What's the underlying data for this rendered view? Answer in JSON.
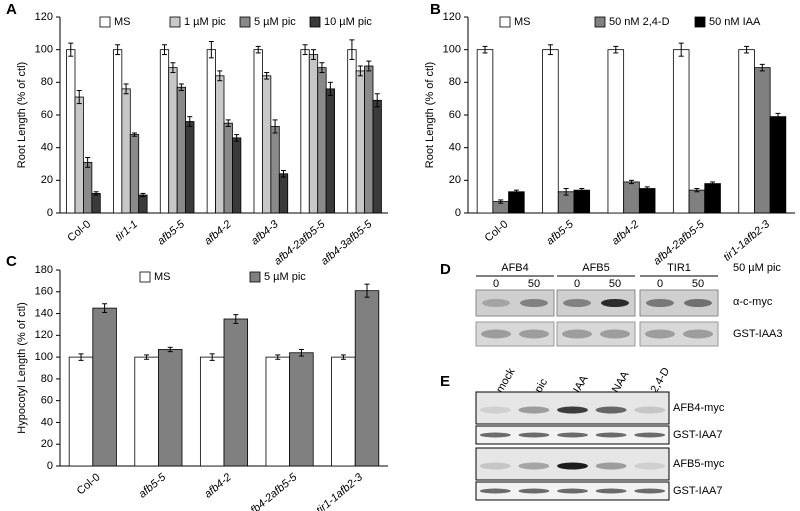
{
  "chart_data": [
    {
      "type": "bar",
      "panel": "A",
      "y_label": "Root Length (% of ctl)",
      "categories": [
        "Col-0",
        "tir1-1",
        "afb5-5",
        "afb4-2",
        "afb4-3",
        "afb4-2afb5-5",
        "afb4-3afb5-5"
      ],
      "series": [
        {
          "name": "MS",
          "color": "#ffffff",
          "values": [
            100,
            100,
            100,
            100,
            100,
            100,
            100
          ],
          "errors": [
            4,
            3,
            3,
            5,
            2,
            3,
            6
          ]
        },
        {
          "name": "1 µM pic",
          "color": "#c8c8c8",
          "values": [
            71,
            76,
            89,
            84,
            84,
            97,
            87
          ],
          "errors": [
            4,
            3,
            3,
            3,
            2,
            3,
            3
          ]
        },
        {
          "name": "5 µM pic",
          "color": "#8a8a8a",
          "values": [
            31,
            48,
            77,
            55,
            53,
            89,
            90
          ],
          "errors": [
            3,
            1,
            2,
            2,
            4,
            3,
            3
          ]
        },
        {
          "name": "10 µM pic",
          "color": "#3a3a3a",
          "values": [
            12,
            11,
            56,
            46,
            24,
            76,
            69
          ],
          "errors": [
            1,
            1,
            3,
            2,
            2,
            4,
            4
          ]
        }
      ],
      "ylim": [
        0,
        120
      ],
      "yticks": [
        0,
        20,
        40,
        60,
        80,
        100,
        120
      ]
    },
    {
      "type": "bar",
      "panel": "B",
      "y_label": "Root Length (% of ctl)",
      "categories": [
        "Col-0",
        "afb5-5",
        "afb4-2",
        "afb4-2afb5-5",
        "tir1-1afb2-3"
      ],
      "series": [
        {
          "name": "MS",
          "color": "#ffffff",
          "values": [
            100,
            100,
            100,
            100,
            100
          ],
          "errors": [
            2,
            3,
            2,
            4,
            2
          ]
        },
        {
          "name": "50 nM 2,4-D",
          "color": "#808080",
          "values": [
            7,
            13,
            19,
            14,
            89
          ],
          "errors": [
            1,
            2,
            1,
            1,
            2
          ]
        },
        {
          "name": "50 nM IAA",
          "color": "#000000",
          "values": [
            13,
            14,
            15,
            18,
            59
          ],
          "errors": [
            1,
            1,
            1,
            1,
            2
          ]
        }
      ],
      "ylim": [
        0,
        120
      ],
      "yticks": [
        0,
        20,
        40,
        60,
        80,
        100,
        120
      ]
    },
    {
      "type": "bar",
      "panel": "C",
      "y_label": "Hypocotyl Length (% of ctl)",
      "categories": [
        "Col-0",
        "afb5-5",
        "afb4-2",
        "afb4-2afb5-5",
        "tir1-1afb2-3"
      ],
      "series": [
        {
          "name": "MS",
          "color": "#ffffff",
          "values": [
            100,
            100,
            100,
            100,
            100
          ],
          "errors": [
            3,
            2,
            3,
            2,
            2
          ]
        },
        {
          "name": "5 µM pic",
          "color": "#808080",
          "values": [
            145,
            107,
            135,
            104,
            161
          ],
          "errors": [
            4,
            2,
            4,
            3,
            6
          ]
        }
      ],
      "ylim": [
        0,
        180
      ],
      "yticks": [
        0,
        20,
        40,
        60,
        80,
        100,
        120,
        140,
        160,
        180
      ]
    }
  ],
  "blots": {
    "D": {
      "panel": "D",
      "groups": [
        "AFB4",
        "AFB5",
        "TIR1"
      ],
      "lanes": [
        "0",
        "50",
        "0",
        "50",
        "0",
        "50"
      ],
      "treatment": "50 µM pic",
      "rows": [
        "α-c-myc",
        "GST-IAA3"
      ]
    },
    "E": {
      "panel": "E",
      "lanes": [
        "mock",
        "pic",
        "IAA",
        "NAA",
        "2,4-D"
      ],
      "rows": [
        "AFB4-myc",
        "GST-IAA7",
        "AFB5-myc",
        "GST-IAA7"
      ]
    }
  }
}
